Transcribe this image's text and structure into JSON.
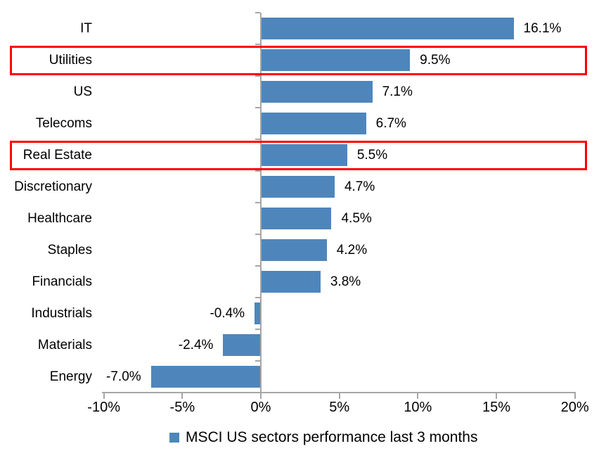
{
  "chart_data": {
    "type": "bar",
    "orientation": "horizontal",
    "categories": [
      "IT",
      "Utilities",
      "US",
      "Telecoms",
      "Real Estate",
      "Discretionary",
      "Healthcare",
      "Staples",
      "Financials",
      "Industrials",
      "Materials",
      "Energy"
    ],
    "values": [
      16.1,
      9.5,
      7.1,
      6.7,
      5.5,
      4.7,
      4.5,
      4.2,
      3.8,
      -0.4,
      -2.4,
      -7.0
    ],
    "value_labels": [
      "16.1%",
      "9.5%",
      "7.1%",
      "6.7%",
      "5.5%",
      "4.7%",
      "4.5%",
      "4.2%",
      "3.8%",
      "-0.4%",
      "-2.4%",
      "-7.0%"
    ],
    "xlim": [
      -10,
      20
    ],
    "x_ticks": [
      {
        "value": -10,
        "label": "-10%"
      },
      {
        "value": -5,
        "label": "-5%"
      },
      {
        "value": 0,
        "label": "0%"
      },
      {
        "value": 5,
        "label": "5%"
      },
      {
        "value": 10,
        "label": "10%"
      },
      {
        "value": 15,
        "label": "15%"
      },
      {
        "value": 20,
        "label": "20%"
      }
    ],
    "grid": false,
    "legend": "MSCI US sectors performance last 3 months",
    "legend_position": "bottom",
    "bar_color": "#4E86BC",
    "axis_color": "#A6A6A6",
    "label_color": "#000000",
    "highlight_color": "#FF0000",
    "highlighted_categories": [
      "Utilities",
      "Real Estate"
    ]
  }
}
